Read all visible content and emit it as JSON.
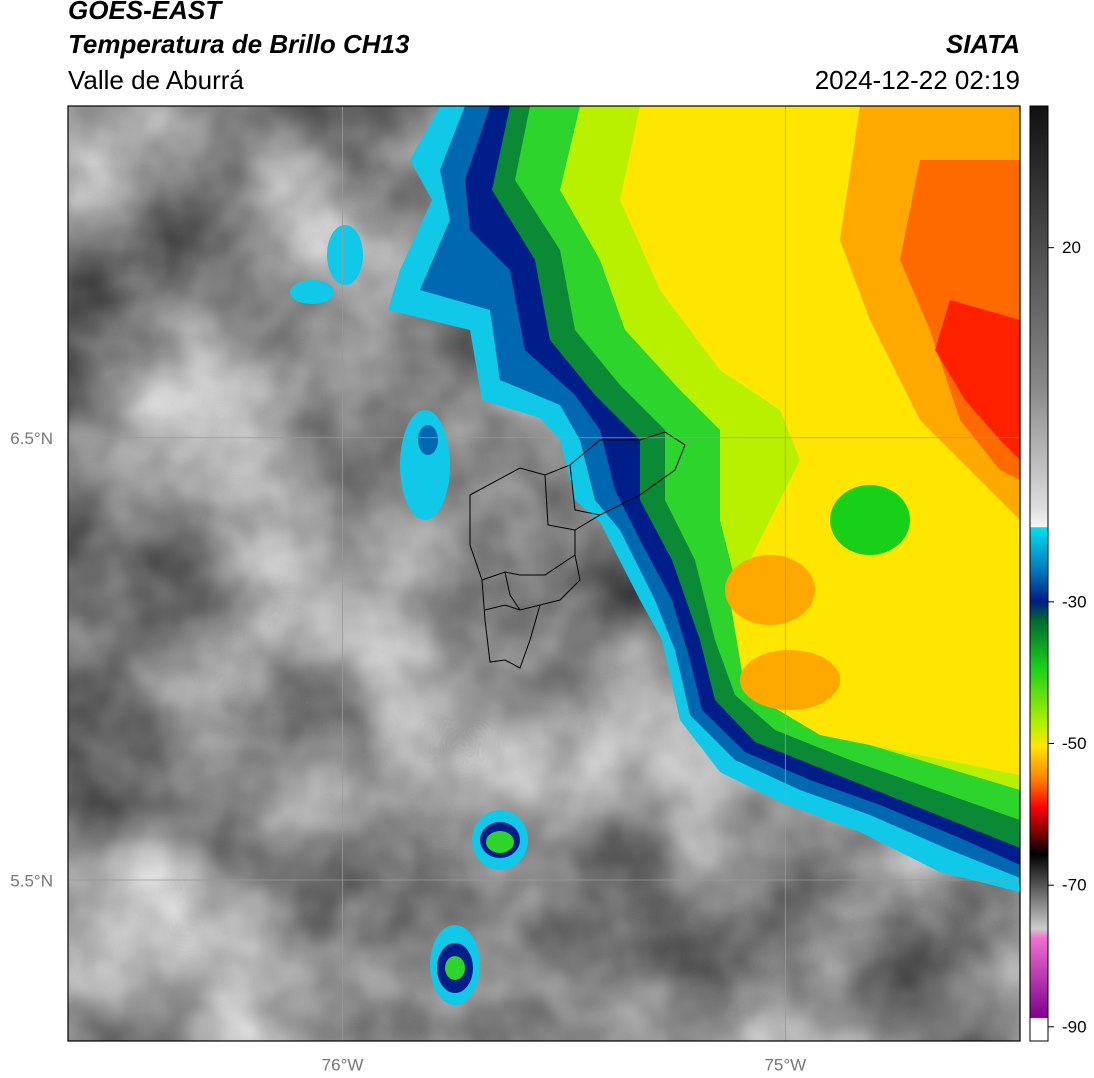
{
  "header": {
    "title": "GOES-EAST",
    "subtitle": "Temperatura de Brillo CH13",
    "region": "Valle de Aburrá",
    "agency": "SIATA",
    "datetime": "2024-12-22 02:19"
  },
  "map": {
    "xlim": [
      -76.62,
      -74.47
    ],
    "ylim": [
      5.136,
      7.25
    ],
    "xticks": [
      {
        "value": -76,
        "label": "76°W"
      },
      {
        "value": -75,
        "label": "75°W"
      }
    ],
    "yticks": [
      {
        "value": 5.5,
        "label": "5.5°N"
      },
      {
        "value": 6.5,
        "label": "6.5°N"
      }
    ],
    "grid": true
  },
  "colorbar": {
    "lim": [
      -92,
      40
    ],
    "ticks": [
      20,
      -30,
      -50,
      -70,
      -90
    ]
  }
}
